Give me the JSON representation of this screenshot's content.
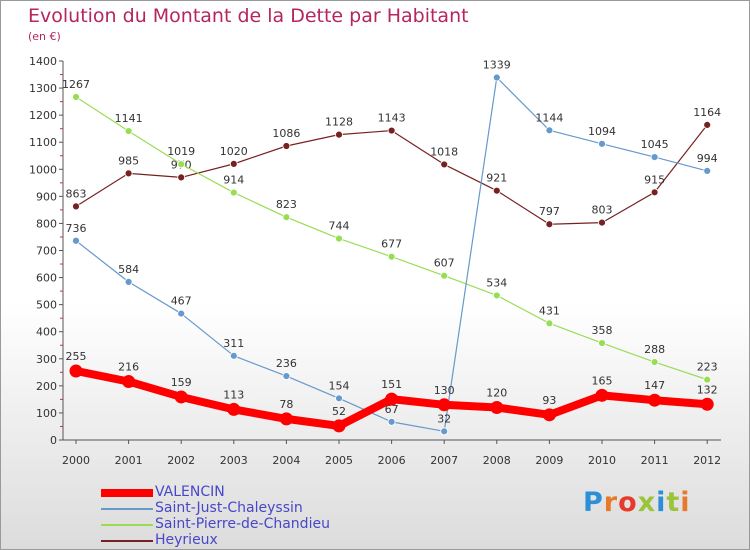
{
  "title": "Evolution du Montant de la Dette par Habitant",
  "unit": "(en €)",
  "logo": "Proxiti",
  "chart_data": {
    "type": "line",
    "x": [
      "2000",
      "2001",
      "2002",
      "2003",
      "2004",
      "2005",
      "2006",
      "2007",
      "2008",
      "2009",
      "2010",
      "2011",
      "2012"
    ],
    "ylim": [
      0,
      1400
    ],
    "yticks": [
      0,
      100,
      200,
      300,
      400,
      500,
      600,
      700,
      800,
      900,
      1000,
      1100,
      1200,
      1300,
      1400
    ],
    "grid": false,
    "legend_position": "bottom-left",
    "series": [
      {
        "name": "VALENCIN",
        "color": "#ff0000",
        "values": [
          255,
          216,
          159,
          113,
          78,
          52,
          151,
          130,
          120,
          93,
          165,
          147,
          132
        ]
      },
      {
        "name": "Saint-Just-Chaleyssin",
        "color": "#6699cc",
        "values": [
          736,
          584,
          467,
          311,
          236,
          154,
          67,
          32,
          1339,
          1144,
          1094,
          1045,
          994
        ]
      },
      {
        "name": "Saint-Pierre-de-Chandieu",
        "color": "#99dd55",
        "values": [
          1267,
          1141,
          1019,
          914,
          823,
          744,
          677,
          607,
          534,
          431,
          358,
          288,
          223
        ]
      },
      {
        "name": "Heyrieux",
        "color": "#772222",
        "values": [
          863,
          985,
          970,
          1020,
          1086,
          1128,
          1143,
          1018,
          921,
          797,
          803,
          915,
          1164
        ]
      }
    ]
  }
}
